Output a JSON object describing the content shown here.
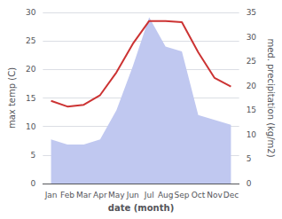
{
  "chart_data": {
    "type": "line",
    "categories": [
      "Jan",
      "Feb",
      "Mar",
      "Apr",
      "May",
      "Jun",
      "Jul",
      "Aug",
      "Sep",
      "Oct",
      "Nov",
      "Dec"
    ],
    "xlabel": "date (month)",
    "ylabel": "max temp (C)",
    "y2label": "med. precipitation (kg/m2)",
    "ylim": [
      0,
      30
    ],
    "yticks": [
      0,
      5,
      10,
      15,
      20,
      25,
      30
    ],
    "y2lim": [
      0,
      35
    ],
    "y2ticks": [
      0,
      5,
      10,
      15,
      20,
      25,
      30,
      35
    ],
    "grid": true,
    "series": [
      {
        "type": "area",
        "axis": "y2",
        "color": "#c0c8f0",
        "values": [
          9.0,
          8.0,
          8.0,
          9.0,
          15.0,
          24.0,
          34.0,
          28.0,
          27.0,
          14.0,
          13.0,
          12.0
        ]
      },
      {
        "type": "line",
        "color": "#cc3333",
        "values": [
          14.5,
          13.5,
          13.8,
          15.5,
          19.5,
          24.5,
          28.5,
          28.5,
          28.3,
          23.0,
          18.5,
          17.0
        ]
      }
    ]
  }
}
